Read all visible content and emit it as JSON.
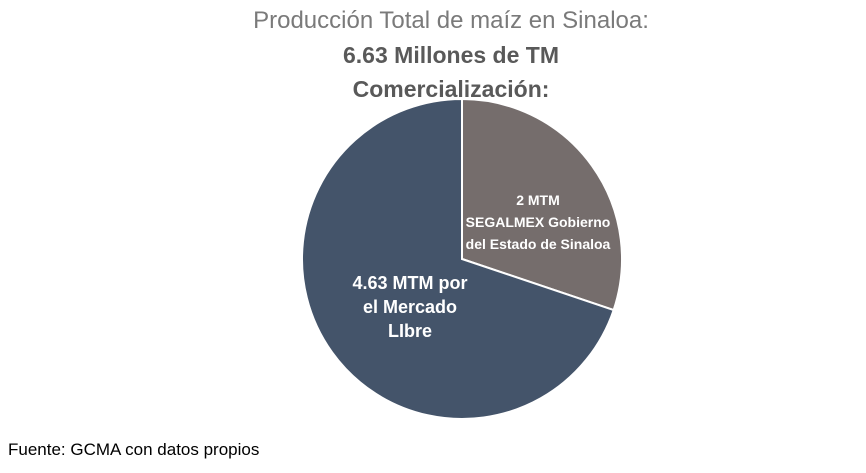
{
  "title": {
    "line1": "Producción Total de maíz en Sinaloa:",
    "line2": "6.63 Millones de TM",
    "line3": "Comercialización:"
  },
  "chart_data": {
    "type": "pie",
    "slices": [
      {
        "label_lines": [
          "2 MTM",
          "SEGALMEX Gobierno",
          "del Estado de Sinaloa"
        ],
        "value": 2,
        "color": "#756d6c"
      },
      {
        "label_lines": [
          "4.63 MTM por",
          "el Mercado",
          "LIbre"
        ],
        "value": 4.63,
        "color": "#44546a"
      }
    ]
  },
  "source": "Fuente: GCMA con datos propios"
}
